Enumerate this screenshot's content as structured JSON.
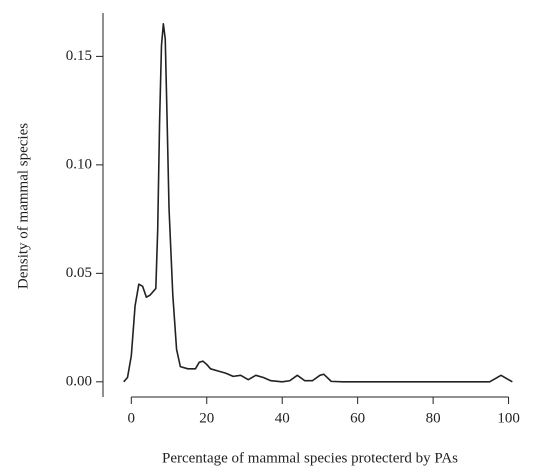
{
  "chart_data": {
    "type": "line",
    "x_label": "Percentage of mammal species protecterd by PAs",
    "y_label": "Density of mammal species",
    "series": [
      {
        "color": "#222222",
        "x": [
          -2,
          -1,
          0,
          1,
          2,
          3,
          4,
          5,
          6,
          6.5,
          7,
          7.5,
          8,
          8.5,
          9,
          9.5,
          10,
          11,
          12,
          13,
          15,
          17,
          18,
          19,
          20,
          21,
          23,
          25,
          27,
          29,
          31,
          33,
          35,
          37,
          40,
          42,
          44,
          46,
          48,
          50,
          51,
          53,
          56,
          95,
          98,
          100,
          101
        ],
        "values": [
          0,
          0.002,
          0.012,
          0.035,
          0.045,
          0.044,
          0.039,
          0.04,
          0.042,
          0.043,
          0.07,
          0.12,
          0.155,
          0.165,
          0.158,
          0.12,
          0.08,
          0.04,
          0.015,
          0.007,
          0.006,
          0.006,
          0.009,
          0.0095,
          0.008,
          0.006,
          0.005,
          0.004,
          0.0025,
          0.003,
          0.001,
          0.003,
          0.002,
          0.0005,
          0,
          0.0005,
          0.003,
          0.0005,
          0.0005,
          0.003,
          0.0035,
          0.0002,
          0,
          0,
          0.003,
          0.001,
          0
        ]
      }
    ],
    "xlim": [
      -7.5,
      102.5
    ],
    "ylim": [
      -0.007,
      0.17
    ],
    "xticks": [
      0,
      20,
      40,
      60,
      80,
      100
    ],
    "yticks": [
      {
        "value": 0,
        "label": "0.00"
      },
      {
        "value": 0.05,
        "label": "0.05"
      },
      {
        "value": 0.1,
        "label": "0.10"
      },
      {
        "value": 0.15,
        "label": "0.15"
      }
    ]
  }
}
